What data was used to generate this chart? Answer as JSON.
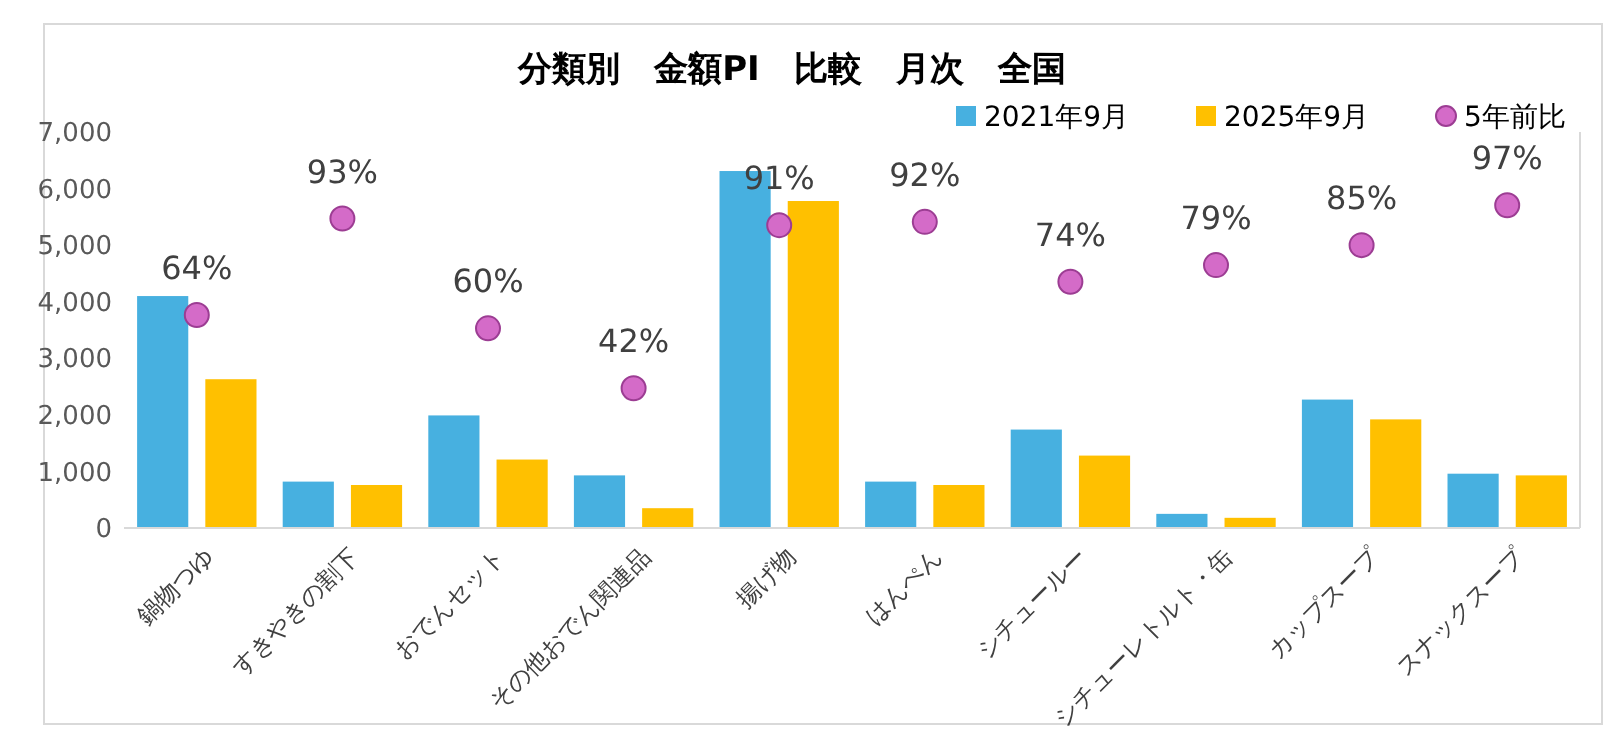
{
  "chart_data": {
    "type": "bar",
    "title": "分類別　金額PI　比較　月次　全国",
    "categories": [
      "鍋物つゆ",
      "すきやきの割下",
      "おでんセット",
      "その他おでん関連品",
      "揚げ物",
      "はんぺん",
      "シチュールー",
      "シチューレトルト・缶",
      "カップスープ",
      "スナックスープ"
    ],
    "series": [
      {
        "name": "2021年9月",
        "color": "#47b0e0",
        "values": [
          4100,
          820,
          1990,
          930,
          6310,
          820,
          1740,
          250,
          2270,
          960
        ]
      },
      {
        "name": "2025年9月",
        "color": "#ffc000",
        "values": [
          2630,
          760,
          1210,
          350,
          5780,
          760,
          1280,
          180,
          1920,
          930
        ]
      },
      {
        "name": "5年前比",
        "type": "scatter",
        "axis": "y2",
        "color": "#d46bc8",
        "values": [
          64,
          93,
          60,
          42,
          91,
          92,
          74,
          79,
          85,
          97
        ],
        "value_labels": [
          "64%",
          "93%",
          "60%",
          "42%",
          "91%",
          "92%",
          "74%",
          "79%",
          "85%",
          "97%"
        ]
      }
    ],
    "ylim": [
      0,
      7000
    ],
    "yticks": [
      {
        "value": 0,
        "label": "0"
      },
      {
        "value": 1000,
        "label": "1,000"
      },
      {
        "value": 2000,
        "label": "2,000"
      },
      {
        "value": 3000,
        "label": "3,000"
      },
      {
        "value": 4000,
        "label": "4,000"
      },
      {
        "value": 5000,
        "label": "5,000"
      },
      {
        "value": 6000,
        "label": "6,000"
      },
      {
        "value": 7000,
        "label": "7,000"
      }
    ],
    "y2lim": [
      0,
      119
    ],
    "tick_labels": "xy",
    "legend": "top",
    "marker": "circle",
    "grid": false
  }
}
